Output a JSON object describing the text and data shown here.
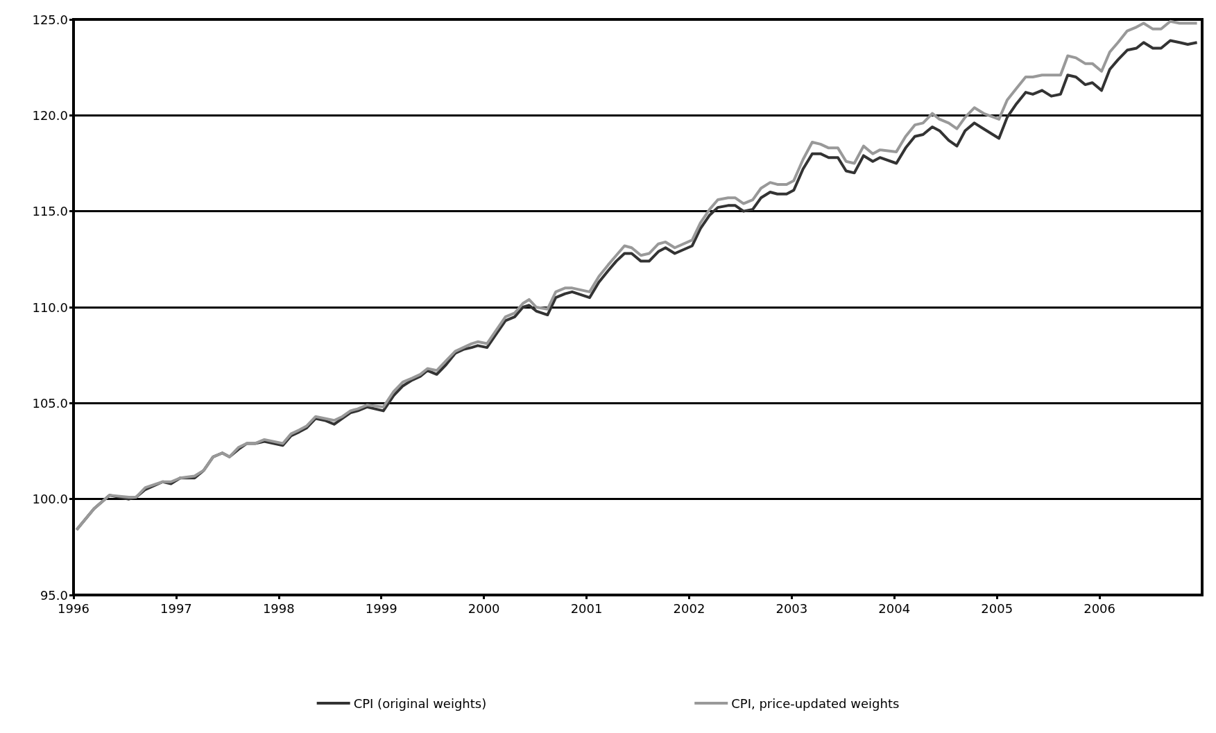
{
  "chart_data": {
    "type": "line",
    "xlim": [
      1996,
      2007
    ],
    "xticks": [
      1996,
      1997,
      1998,
      1999,
      2000,
      2001,
      2002,
      2003,
      2004,
      2005,
      2006
    ],
    "ylim": [
      95,
      125
    ],
    "yticks": [
      {
        "value": 95,
        "label": "95.0"
      },
      {
        "value": 100,
        "label": "100.0"
      },
      {
        "value": 105,
        "label": "105.0"
      },
      {
        "value": 110,
        "label": "110.0"
      },
      {
        "value": 115,
        "label": "115.0"
      },
      {
        "value": 120,
        "label": "120.0"
      },
      {
        "value": 125,
        "label": "125.0"
      }
    ],
    "grid": "y",
    "legend": "bottom",
    "line_style": "solid",
    "x": [
      1996.03,
      1996.2,
      1996.35,
      1996.54,
      1996.61,
      1996.7,
      1996.87,
      1996.95,
      1997.04,
      1997.18,
      1997.27,
      1997.36,
      1997.45,
      1997.52,
      1997.61,
      1997.69,
      1997.77,
      1997.86,
      1998.04,
      1998.12,
      1998.2,
      1998.27,
      1998.36,
      1998.45,
      1998.54,
      1998.62,
      1998.7,
      1998.77,
      1998.86,
      1999.02,
      1999.12,
      1999.21,
      1999.3,
      1999.38,
      1999.45,
      1999.54,
      1999.63,
      1999.72,
      1999.8,
      1999.88,
      1999.94,
      2000.03,
      2000.12,
      2000.21,
      2000.3,
      2000.38,
      2000.44,
      2000.51,
      2000.62,
      2000.7,
      2000.79,
      2000.86,
      2001.03,
      2001.12,
      2001.21,
      2001.29,
      2001.37,
      2001.44,
      2001.53,
      2001.61,
      2001.7,
      2001.77,
      2001.86,
      2002.03,
      2002.11,
      2002.2,
      2002.28,
      2002.38,
      2002.45,
      2002.53,
      2002.62,
      2002.7,
      2002.79,
      2002.86,
      2002.95,
      2003.02,
      2003.11,
      2003.2,
      2003.28,
      2003.36,
      2003.45,
      2003.53,
      2003.61,
      2003.7,
      2003.79,
      2003.86,
      2004.02,
      2004.11,
      2004.2,
      2004.28,
      2004.37,
      2004.44,
      2004.53,
      2004.61,
      2004.69,
      2004.78,
      2004.87,
      2005.02,
      2005.1,
      2005.19,
      2005.28,
      2005.35,
      2005.44,
      2005.53,
      2005.62,
      2005.69,
      2005.77,
      2005.86,
      2005.93,
      2006.02,
      2006.1,
      2006.18,
      2006.27,
      2006.36,
      2006.43,
      2006.52,
      2006.6,
      2006.69,
      2006.78,
      2006.86,
      2006.95
    ],
    "series": [
      {
        "name": "CPI (original weights)",
        "color": "#333333",
        "values": [
          98.4,
          99.5,
          100.2,
          100.0,
          100.1,
          100.5,
          100.9,
          100.8,
          101.1,
          101.1,
          101.5,
          102.2,
          102.4,
          102.2,
          102.6,
          102.9,
          102.9,
          103.0,
          102.8,
          103.3,
          103.5,
          103.7,
          104.2,
          104.1,
          103.9,
          104.2,
          104.5,
          104.6,
          104.8,
          104.6,
          105.4,
          105.9,
          106.2,
          106.4,
          106.7,
          106.5,
          107.0,
          107.6,
          107.8,
          107.9,
          108.0,
          107.9,
          108.6,
          109.3,
          109.5,
          110.0,
          110.1,
          109.8,
          109.6,
          110.5,
          110.7,
          110.8,
          110.5,
          111.3,
          111.9,
          112.4,
          112.8,
          112.8,
          112.4,
          112.4,
          112.9,
          113.1,
          112.8,
          113.2,
          114.1,
          114.8,
          115.2,
          115.3,
          115.3,
          115.0,
          115.1,
          115.7,
          116.0,
          115.9,
          115.9,
          116.1,
          117.2,
          118.0,
          118.0,
          117.8,
          117.8,
          117.1,
          117.0,
          117.9,
          117.6,
          117.8,
          117.5,
          118.3,
          118.9,
          119.0,
          119.4,
          119.2,
          118.7,
          118.4,
          119.2,
          119.6,
          119.3,
          118.8,
          119.9,
          120.6,
          121.2,
          121.1,
          121.3,
          121.0,
          121.1,
          122.1,
          122.0,
          121.6,
          121.7,
          121.3,
          122.4,
          122.9,
          123.4,
          123.5,
          123.8,
          123.5,
          123.5,
          123.9,
          123.8,
          123.7,
          123.8
        ]
      },
      {
        "name": "CPI, price-updated weights",
        "color": "#999999",
        "values": [
          98.4,
          99.5,
          100.2,
          100.1,
          100.1,
          100.6,
          100.9,
          100.9,
          101.1,
          101.2,
          101.5,
          102.2,
          102.4,
          102.2,
          102.7,
          102.9,
          102.9,
          103.1,
          102.9,
          103.4,
          103.6,
          103.8,
          104.3,
          104.2,
          104.1,
          104.3,
          104.6,
          104.7,
          104.9,
          104.8,
          105.6,
          106.1,
          106.3,
          106.5,
          106.8,
          106.7,
          107.2,
          107.7,
          107.9,
          108.1,
          108.2,
          108.1,
          108.8,
          109.5,
          109.7,
          110.2,
          110.4,
          110.0,
          109.9,
          110.8,
          111.0,
          111.0,
          110.8,
          111.6,
          112.2,
          112.7,
          113.2,
          113.1,
          112.7,
          112.8,
          113.3,
          113.4,
          113.1,
          113.5,
          114.4,
          115.1,
          115.6,
          115.7,
          115.7,
          115.4,
          115.6,
          116.2,
          116.5,
          116.4,
          116.4,
          116.6,
          117.7,
          118.6,
          118.5,
          118.3,
          118.3,
          117.6,
          117.5,
          118.4,
          118.0,
          118.2,
          118.1,
          118.9,
          119.5,
          119.6,
          120.1,
          119.8,
          119.6,
          119.3,
          119.9,
          120.4,
          120.1,
          119.8,
          120.8,
          121.4,
          122.0,
          122.0,
          122.1,
          122.1,
          122.1,
          123.1,
          123.0,
          122.7,
          122.7,
          122.3,
          123.3,
          123.8,
          124.4,
          124.6,
          124.8,
          124.5,
          124.5,
          124.9,
          124.8,
          124.8,
          124.8
        ]
      }
    ]
  }
}
